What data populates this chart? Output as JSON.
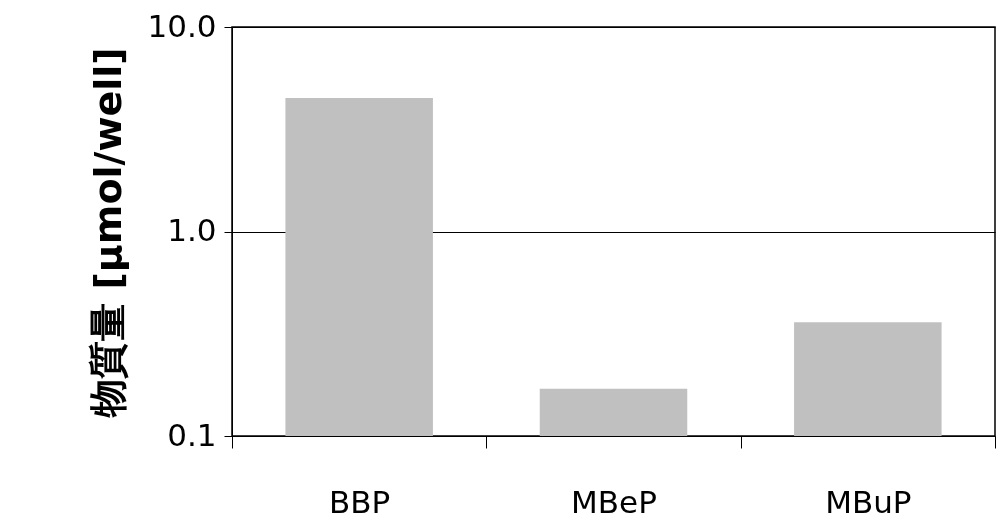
{
  "chart_data": {
    "type": "bar",
    "ylabel": "物質量 [μmol/well]",
    "categories": [
      "BBP",
      "MBeP",
      "MBuP"
    ],
    "values": [
      4.5,
      0.17,
      0.36
    ],
    "color": "#c0c0c0",
    "log": true,
    "ylim": [
      0.1,
      10
    ],
    "yticks": [
      {
        "value": 0.1,
        "label": "0.1"
      },
      {
        "value": 1,
        "label": "1.0"
      },
      {
        "value": 10,
        "label": "10.0"
      }
    ],
    "grid": "y"
  }
}
